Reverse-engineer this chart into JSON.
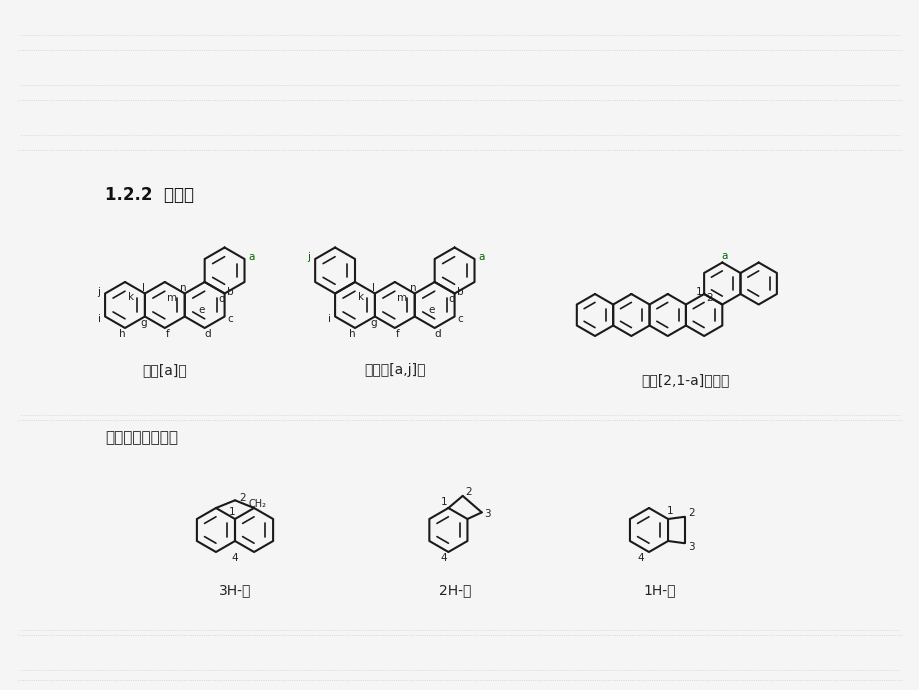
{
  "bg_color": "#f5f5f5",
  "title_text": "1.2.2  稠环烃",
  "label1": "苯并[a]蒽",
  "label2": "二苯并[a,j]蒽",
  "label3": "蒽并[2,1-a]并四苯",
  "label4": "3H-芴",
  "label5": "2H-茚",
  "label6": "1H-茚",
  "section2_text": "额外氢的标明方法",
  "ring_color": "#1a1a1a",
  "highlight_color": "#006600",
  "label_color": "#222222",
  "bg_line_color": "#cccccc",
  "title_color": "#111111"
}
